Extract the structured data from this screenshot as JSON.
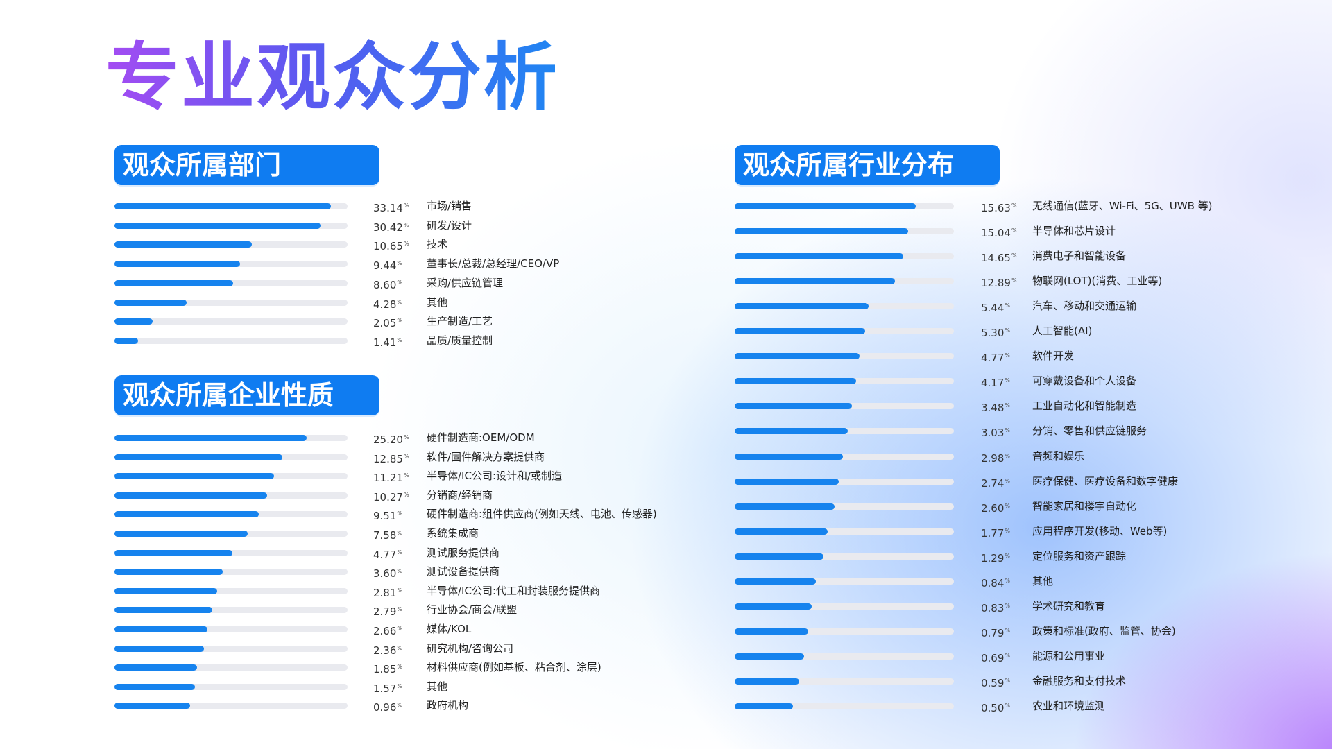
{
  "title": "专业观众分析",
  "colors": {
    "accent": "#0f7cf1",
    "bar": "#1683ee",
    "track": "#e9eaef",
    "title_gradient": [
      "#a44cf2",
      "#5a59f0",
      "#1f86f2"
    ]
  },
  "percent_symbol": "%",
  "chart_data": [
    {
      "type": "bar",
      "orientation": "horizontal",
      "title": "观众所属部门",
      "unit": "%",
      "bar_max": 36.5,
      "categories": [
        "市场/销售",
        "研发/设计",
        "技术",
        "董事长/总裁/总经理/CEO/VP",
        "采购/供应链管理",
        "其他",
        "生产制造/工艺",
        "品质/质量控制"
      ],
      "values": [
        "33.14",
        "30.42",
        "10.65",
        "9.44",
        "8.60",
        "4.28",
        "2.05",
        "1.41"
      ],
      "bar_levels": [
        0.93,
        0.885,
        0.59,
        0.54,
        0.51,
        0.31,
        0.165,
        0.1
      ]
    },
    {
      "type": "bar",
      "orientation": "horizontal",
      "title": "观众所属企业性质",
      "unit": "%",
      "categories": [
        "硬件制造商:OEM/ODM",
        "软件/固件解决方案提供商",
        "半导体/IC公司:设计和/或制造",
        "分销商/经销商",
        "硬件制造商:组件供应商(例如天线、电池、传感器)",
        "系统集成商",
        "测试服务提供商",
        "测试设备提供商",
        "半导体/IC公司:代工和封装服务提供商",
        "行业协会/商会/联盟",
        "媒体/KOL",
        "研究机构/咨询公司",
        "材料供应商(例如基板、粘合剂、涂层)",
        "其他",
        "政府机构"
      ],
      "values": [
        "25.20",
        "12.85",
        "11.21",
        "10.27",
        "9.51",
        "7.58",
        "4.77",
        "3.60",
        "2.81",
        "2.79",
        "2.66",
        "2.36",
        "1.85",
        "1.57",
        "0.96"
      ],
      "bar_levels": [
        0.825,
        0.72,
        0.685,
        0.655,
        0.62,
        0.57,
        0.505,
        0.465,
        0.44,
        0.42,
        0.4,
        0.385,
        0.355,
        0.345,
        0.325
      ]
    },
    {
      "type": "bar",
      "orientation": "horizontal",
      "title": "观众所属行业分布",
      "unit": "%",
      "categories": [
        "无线通信(蓝牙、Wi-Fi、5G、UWB 等)",
        "半导体和芯片设计",
        "消费电子和智能设备",
        "物联网(LOT)(消费、工业等)",
        "汽车、移动和交通运输",
        "人工智能(AI)",
        "软件开发",
        "可穿戴设备和个人设备",
        "工业自动化和智能制造",
        "分销、零售和供应链服务",
        "音频和娱乐",
        "医疗保健、医疗设备和数字健康",
        "智能家居和楼宇自动化",
        "应用程序开发(移动、Web等)",
        "定位服务和资产跟踪",
        "其他",
        "学术研究和教育",
        "政策和标准(政府、监管、协会)",
        "能源和公用事业",
        "金融服务和支付技术",
        "农业和环境监测"
      ],
      "values": [
        "15.63",
        "15.04",
        "14.65",
        "12.89",
        "5.44",
        "5.30",
        "4.77",
        "4.17",
        "3.48",
        "3.03",
        "2.98",
        "2.74",
        "2.60",
        "1.77",
        "1.29",
        "0.84",
        "0.83",
        "0.79",
        "0.69",
        "0.59",
        "0.50"
      ],
      "bar_levels": [
        0.825,
        0.79,
        0.77,
        0.73,
        0.61,
        0.595,
        0.57,
        0.555,
        0.535,
        0.515,
        0.495,
        0.475,
        0.455,
        0.425,
        0.405,
        0.37,
        0.35,
        0.335,
        0.315,
        0.295,
        0.265
      ]
    }
  ]
}
